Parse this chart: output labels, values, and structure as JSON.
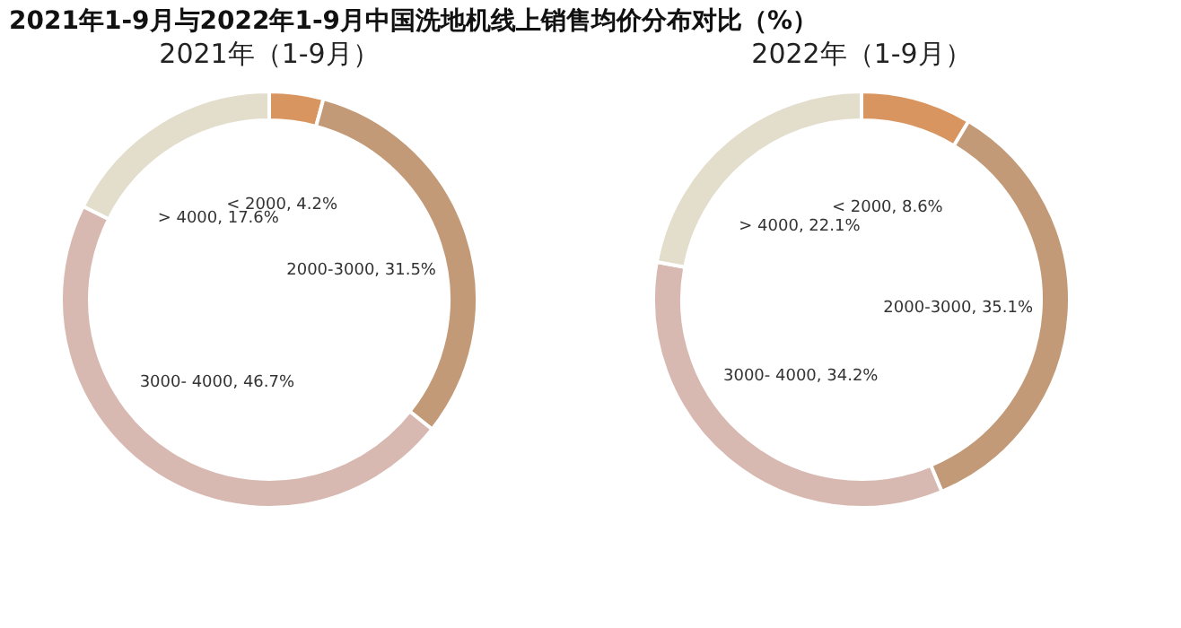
{
  "chart_data": [
    {
      "type": "donut",
      "title": "2021年1-9月与2022年1-9月中国洗地机线上销售均价分布对比（%）",
      "subtitle": "2021年（1-9月）",
      "categories": [
        "< 2000",
        "2000-3000",
        "3000- 4000",
        "> 4000"
      ],
      "values": [
        4.2,
        31.5,
        46.7,
        17.6
      ],
      "colors": [
        "#d9955f",
        "#c39a78",
        "#d8b9b1",
        "#e3ddcc"
      ],
      "value_labels": [
        "4.2%",
        "31.5%",
        "46.7%",
        "17.6%"
      ],
      "legend": false
    },
    {
      "type": "donut",
      "subtitle": "2022年（1-9月）",
      "categories": [
        "< 2000",
        "2000-3000",
        "3000- 4000",
        "> 4000"
      ],
      "values": [
        8.6,
        35.1,
        34.2,
        22.1
      ],
      "colors": [
        "#d9955f",
        "#c39a78",
        "#d8b9b1",
        "#e3ddcc"
      ],
      "value_labels": [
        "8.6%",
        "35.1%",
        "34.2%",
        "22.1%"
      ],
      "legend": false
    }
  ]
}
